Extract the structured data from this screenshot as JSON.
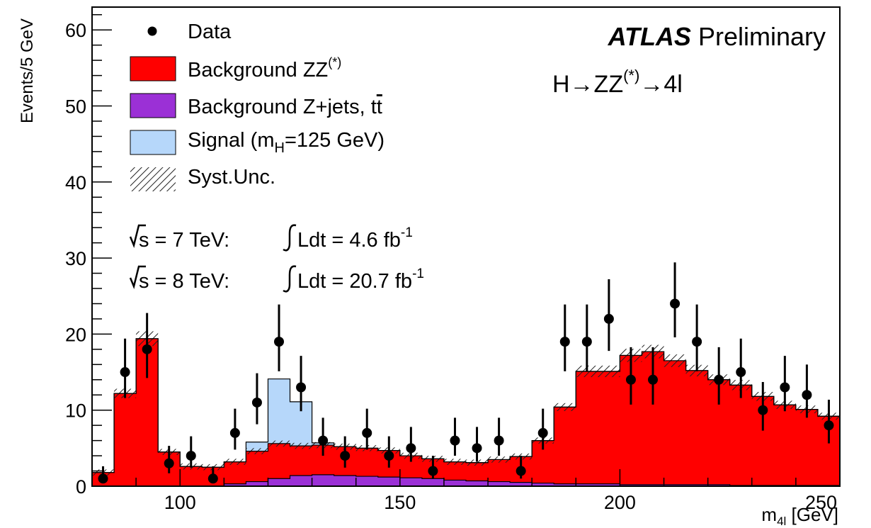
{
  "chart_data": {
    "type": "bar",
    "bin_width": 5,
    "bin_edges": [
      80,
      85,
      90,
      95,
      100,
      105,
      110,
      115,
      120,
      125,
      130,
      135,
      140,
      145,
      150,
      155,
      160,
      165,
      170,
      175,
      180,
      185,
      190,
      195,
      200,
      205,
      210,
      215,
      220,
      225,
      230,
      235,
      240,
      245,
      250
    ],
    "xlim": [
      80,
      250
    ],
    "ylim": [
      0,
      63
    ],
    "xticks": [
      100,
      150,
      200,
      250
    ],
    "yticks": [
      0,
      10,
      20,
      30,
      40,
      50,
      60
    ],
    "xlabel_main": "m",
    "xlabel_sub": "4l",
    "xlabel_unit": " [GeV]",
    "ylabel": "Events/5 GeV",
    "series": [
      {
        "name": "Background Z+jets, tt̄",
        "color": "#9b30d6",
        "values": [
          0.0,
          0.0,
          0.0,
          0.0,
          0.0,
          0.0,
          0.3,
          0.6,
          1.0,
          1.4,
          1.5,
          1.4,
          1.3,
          1.2,
          1.1,
          1.0,
          0.8,
          0.7,
          0.6,
          0.5,
          0.4,
          0.3,
          0.3,
          0.3,
          0.2,
          0.2,
          0.2,
          0.2,
          0.2,
          0.1,
          0.1,
          0.1,
          0.1,
          0.1
        ]
      },
      {
        "name": "Background ZZ(*)",
        "color": "#ff0000",
        "values": [
          1.8,
          12.2,
          19.4,
          4.5,
          2.6,
          2.5,
          2.9,
          4.0,
          4.6,
          3.9,
          3.9,
          3.8,
          3.7,
          3.5,
          2.9,
          2.6,
          2.4,
          2.4,
          2.9,
          3.4,
          5.6,
          10.1,
          14.8,
          14.8,
          17.0,
          17.5,
          16.3,
          15.0,
          13.8,
          13.2,
          11.7,
          10.6,
          10.0,
          9.1
        ]
      },
      {
        "name": "Signal (m_H=125 GeV)",
        "color": "#b6d7fa",
        "values": [
          0,
          0,
          0,
          0,
          0,
          0,
          0,
          1.2,
          8.5,
          5.8,
          0.3,
          0,
          0,
          0,
          0,
          0,
          0,
          0,
          0,
          0,
          0,
          0,
          0,
          0,
          0,
          0,
          0,
          0,
          0,
          0,
          0,
          0,
          0,
          0
        ]
      }
    ],
    "data_points": {
      "name": "Data",
      "x": [
        82.5,
        87.5,
        92.5,
        97.5,
        102.5,
        107.5,
        112.5,
        117.5,
        122.5,
        127.5,
        132.5,
        137.5,
        142.5,
        147.5,
        152.5,
        157.5,
        162.5,
        167.5,
        172.5,
        177.5,
        182.5,
        187.5,
        192.5,
        197.5,
        202.5,
        207.5,
        212.5,
        217.5,
        222.5,
        227.5,
        232.5,
        237.5,
        242.5,
        247.5
      ],
      "y": [
        1,
        15,
        18,
        3,
        4,
        1,
        7,
        11,
        19,
        13,
        6,
        4,
        7,
        4,
        5,
        2,
        6,
        5,
        6,
        2,
        7,
        19,
        19,
        22,
        14,
        14,
        24,
        19,
        14,
        15,
        10,
        13,
        12,
        8
      ]
    },
    "legend": {
      "data": "Data",
      "zz": "Background ZZ",
      "zz_sup": "(*)",
      "zjets": "Background Z+jets, t",
      "zjets_tbar": "t",
      "signal_pre": "Signal (m",
      "signal_sub": "H",
      "signal_post": "=125 GeV)",
      "syst": "Syst.Unc."
    },
    "atlas_bold": "ATLAS",
    "atlas_rest": " Preliminary",
    "process": {
      "pre": "H→ZZ",
      "sup": "(*)",
      "post": "→4l"
    },
    "lumi_7": {
      "pre": "s = 7 TeV: ",
      "mid": "Ldt = 4.6 fb",
      "sup": "-1"
    },
    "lumi_8": {
      "pre": "s = 8 TeV: ",
      "mid": "Ldt = 20.7 fb",
      "sup": "-1"
    },
    "colors": {
      "zz": "#ff0000",
      "zjets": "#9b30d6",
      "signal": "#b6d7fa",
      "data": "#000000"
    }
  }
}
